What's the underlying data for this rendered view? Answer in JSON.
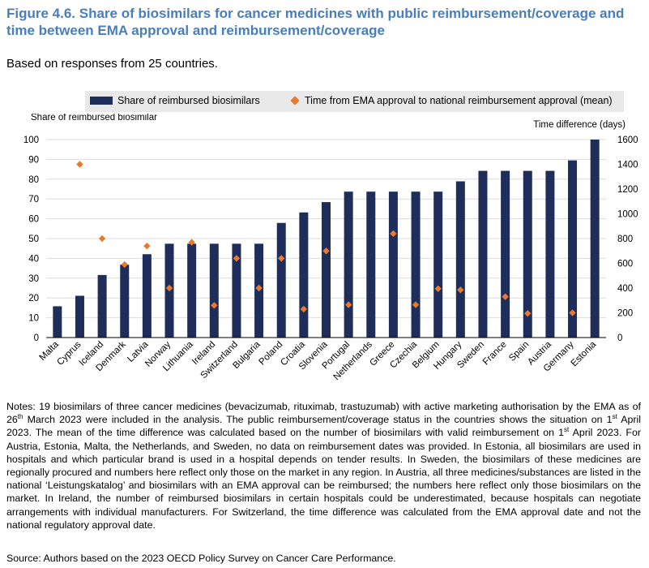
{
  "title": "Figure 4.6. Share of biosimilars for cancer medicines with public reimbursement/coverage and time between EMA approval and reimbursement/coverage",
  "subtitle": "Based on responses from 25 countries.",
  "legend": {
    "bar_label": "Share of reimbursed biosimilars",
    "diamond_label": "Time from EMA approval to national reimbursement approval (mean)"
  },
  "notes": {
    "p1": "Notes: 19 biosimilars of three cancer medicines (bevacizumab, rituximab, trastuzumab) with active marketing authorisation by the EMA as of 26",
    "sup1": "th",
    "p2": " March 2023 were included in the analysis. The public reimbursement/coverage status in the countries shows the situation on 1",
    "sup2": "st",
    "p3": " April 2023. The mean of the time difference was calculated based on the number of biosimilars with valid reimbursement on 1",
    "sup3": "st",
    "p4": " April 2023. For Austria, Estonia, Malta, the Netherlands, and Sweden, no data on reimbursement dates was provided. In Estonia, all biosimilars are used in hospitals and which particular brand is used in a hospital depends on tender results. In Sweden, the biosimilars of these medicines are regionally procured and numbers here reflect only those on the market in any region. In Austria, all three medicines/substances are listed in the national ‘Leistungskatalog’ and biosimilars with an EMA approval can be reimbursed; the numbers here reflect only those biosimilars on the market. In Ireland, the number of reimbursed biosimilars in certain hospitals could be underestimated, because hospitals can negotiate arrangements with individual manufacturers. For Switzerland, the time difference was calculated from the EMA approval date and not the national regulatory approval date."
  },
  "source": "Source: Authors based on the 2023 OECD Policy Survey on Cancer Care Performance.",
  "colors": {
    "bar": "#1f2d5a",
    "diamond": "#e8792e",
    "title": "#4a7ebb",
    "grid": "#dcdcdc"
  },
  "chart_data": {
    "type": "bar",
    "ylabel": "Share of reimbursed biosimilar",
    "y2label": "Time difference (days)",
    "ylim": [
      0,
      100
    ],
    "y2lim": [
      0,
      1600
    ],
    "yticks": [
      0,
      10,
      20,
      30,
      40,
      50,
      60,
      70,
      80,
      90,
      100
    ],
    "y2ticks": [
      0,
      200,
      400,
      600,
      800,
      1000,
      1200,
      1400,
      1600
    ],
    "categories": [
      "Malta",
      "Cyprus",
      "Iceland",
      "Denmark",
      "Latvia",
      "Norway",
      "Lithuania",
      "Ireland",
      "Switzerland",
      "Bulgaria",
      "Poland",
      "Croatia",
      "Slovenia",
      "Portugal",
      "Netherlands",
      "Greece",
      "Czechia",
      "Belgium",
      "Hungary",
      "Sweden",
      "France",
      "Spain",
      "Austria",
      "Germany",
      "Estonia"
    ],
    "series": [
      {
        "name": "Share of reimbursed biosimilars",
        "type": "bar",
        "axis": "left",
        "values": [
          15.8,
          21.1,
          31.6,
          36.8,
          42.1,
          47.4,
          47.4,
          47.4,
          47.4,
          47.4,
          57.9,
          63.2,
          68.4,
          73.7,
          73.7,
          73.7,
          73.7,
          73.7,
          78.9,
          84.2,
          84.2,
          84.2,
          84.2,
          89.5,
          100
        ]
      },
      {
        "name": "Time from EMA approval to national reimbursement approval (mean)",
        "type": "scatter",
        "axis": "right",
        "values": [
          null,
          1400,
          800,
          590,
          740,
          400,
          770,
          260,
          640,
          400,
          640,
          230,
          700,
          265,
          null,
          840,
          265,
          395,
          385,
          null,
          330,
          195,
          null,
          200,
          null
        ]
      }
    ]
  }
}
